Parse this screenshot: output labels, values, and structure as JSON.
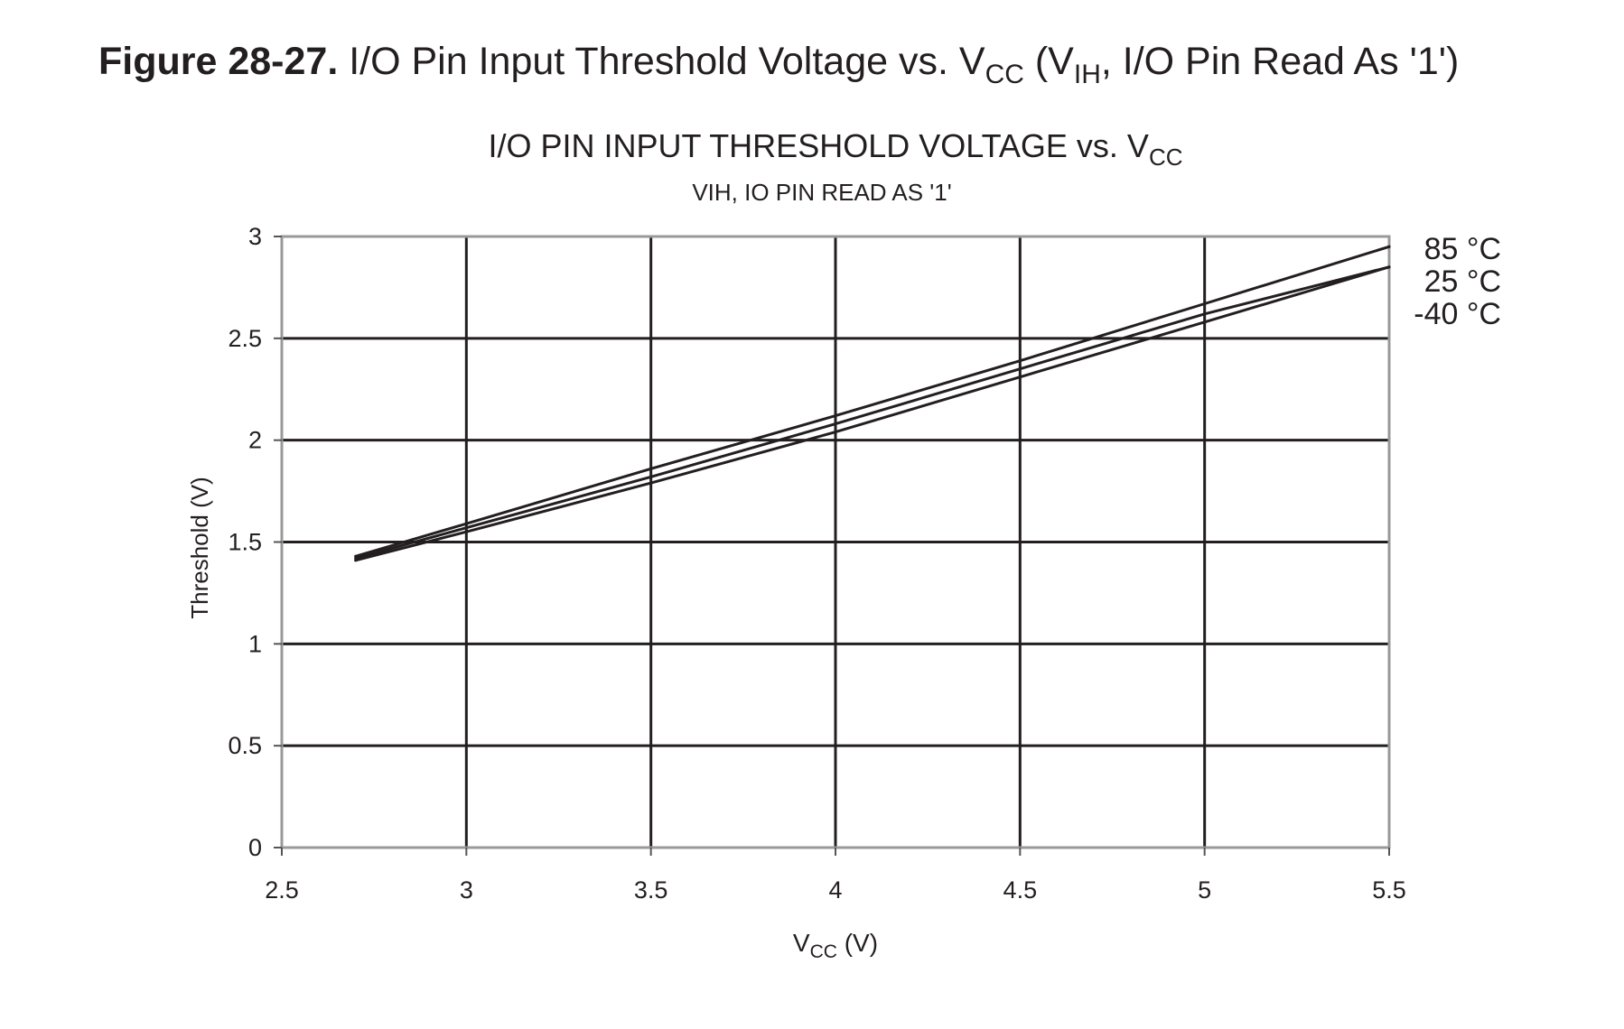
{
  "figure_caption": {
    "number": "Figure 28-27.",
    "text_1": "I/O Pin Input Threshold Voltage vs. V",
    "sub_1": "CC",
    "text_2": " (V",
    "sub_2": "IH",
    "text_3": ", I/O Pin Read As '1')"
  },
  "chart_data": {
    "type": "line",
    "title_main": "I/O PIN INPUT THRESHOLD VOLTAGE vs. V",
    "title_sub": "CC",
    "subtitle": "VIH, IO PIN READ AS '1'",
    "xlabel_main": "V",
    "xlabel_sub": "CC",
    "xlabel_unit": " (V)",
    "ylabel": "Threshold (V)",
    "xlim": [
      2.5,
      5.5
    ],
    "ylim": [
      0,
      3
    ],
    "xticks": [
      "2.5",
      "3",
      "3.5",
      "4",
      "4.5",
      "5",
      "5.5"
    ],
    "yticks": [
      "0",
      "0.5",
      "1",
      "1.5",
      "2",
      "2.5",
      "3"
    ],
    "grid": true,
    "legend_placement": "right, at line ends",
    "series": [
      {
        "name": "85 °C",
        "x": [
          2.7,
          3.0,
          3.5,
          4.0,
          4.5,
          5.0,
          5.5
        ],
        "y": [
          1.43,
          1.59,
          1.86,
          2.12,
          2.39,
          2.67,
          2.95
        ]
      },
      {
        "name": "25 °C",
        "x": [
          2.7,
          3.0,
          3.5,
          4.0,
          4.5,
          5.0,
          5.5
        ],
        "y": [
          1.42,
          1.57,
          1.82,
          2.08,
          2.35,
          2.62,
          2.85
        ]
      },
      {
        "name": "-40 °C",
        "x": [
          2.7,
          3.0,
          3.5,
          4.0,
          4.5,
          5.0,
          5.5
        ],
        "y": [
          1.41,
          1.55,
          1.79,
          2.04,
          2.31,
          2.58,
          2.85
        ]
      }
    ]
  }
}
